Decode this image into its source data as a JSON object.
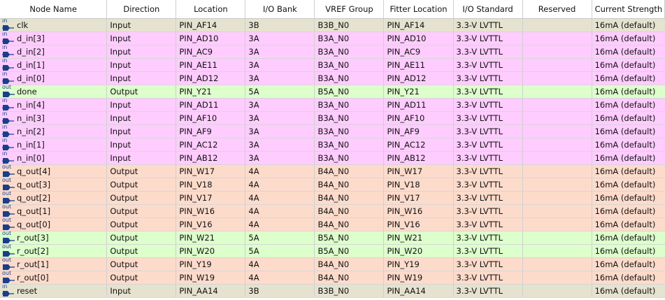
{
  "columns": [
    "Node Name",
    "Direction",
    "Location",
    "I/O Bank",
    "VREF Group",
    "Fitter Location",
    "I/O Standard",
    "Reserved",
    "Current Strength"
  ],
  "colors": {
    "clock": "#e5e3cf",
    "input_data": "#ffccff",
    "output_status": "#ddffcc",
    "output_data": "#fddbcb",
    "icon": "#1a3f8a"
  },
  "rows": [
    {
      "icon": "in",
      "name": "clk",
      "direction": "Input",
      "location": "PIN_AF14",
      "bank": "3B",
      "vref": "B3B_N0",
      "fitter": "PIN_AF14",
      "standard": "3.3-V LVTTL",
      "reserved": "",
      "current": "16mA (default)",
      "group": "clock"
    },
    {
      "icon": "in",
      "name": "d_in[3]",
      "direction": "Input",
      "location": "PIN_AD10",
      "bank": "3A",
      "vref": "B3A_N0",
      "fitter": "PIN_AD10",
      "standard": "3.3-V LVTTL",
      "reserved": "",
      "current": "16mA (default)",
      "group": "input_data"
    },
    {
      "icon": "in",
      "name": "d_in[2]",
      "direction": "Input",
      "location": "PIN_AC9",
      "bank": "3A",
      "vref": "B3A_N0",
      "fitter": "PIN_AC9",
      "standard": "3.3-V LVTTL",
      "reserved": "",
      "current": "16mA (default)",
      "group": "input_data"
    },
    {
      "icon": "in",
      "name": "d_in[1]",
      "direction": "Input",
      "location": "PIN_AE11",
      "bank": "3A",
      "vref": "B3A_N0",
      "fitter": "PIN_AE11",
      "standard": "3.3-V LVTTL",
      "reserved": "",
      "current": "16mA (default)",
      "group": "input_data"
    },
    {
      "icon": "in",
      "name": "d_in[0]",
      "direction": "Input",
      "location": "PIN_AD12",
      "bank": "3A",
      "vref": "B3A_N0",
      "fitter": "PIN_AD12",
      "standard": "3.3-V LVTTL",
      "reserved": "",
      "current": "16mA (default)",
      "group": "input_data"
    },
    {
      "icon": "out",
      "name": "done",
      "direction": "Output",
      "location": "PIN_Y21",
      "bank": "5A",
      "vref": "B5A_N0",
      "fitter": "PIN_Y21",
      "standard": "3.3-V LVTTL",
      "reserved": "",
      "current": "16mA (default)",
      "group": "output_status"
    },
    {
      "icon": "in",
      "name": "n_in[4]",
      "direction": "Input",
      "location": "PIN_AD11",
      "bank": "3A",
      "vref": "B3A_N0",
      "fitter": "PIN_AD11",
      "standard": "3.3-V LVTTL",
      "reserved": "",
      "current": "16mA (default)",
      "group": "input_data"
    },
    {
      "icon": "in",
      "name": "n_in[3]",
      "direction": "Input",
      "location": "PIN_AF10",
      "bank": "3A",
      "vref": "B3A_N0",
      "fitter": "PIN_AF10",
      "standard": "3.3-V LVTTL",
      "reserved": "",
      "current": "16mA (default)",
      "group": "input_data"
    },
    {
      "icon": "in",
      "name": "n_in[2]",
      "direction": "Input",
      "location": "PIN_AF9",
      "bank": "3A",
      "vref": "B3A_N0",
      "fitter": "PIN_AF9",
      "standard": "3.3-V LVTTL",
      "reserved": "",
      "current": "16mA (default)",
      "group": "input_data"
    },
    {
      "icon": "in",
      "name": "n_in[1]",
      "direction": "Input",
      "location": "PIN_AC12",
      "bank": "3A",
      "vref": "B3A_N0",
      "fitter": "PIN_AC12",
      "standard": "3.3-V LVTTL",
      "reserved": "",
      "current": "16mA (default)",
      "group": "input_data"
    },
    {
      "icon": "in",
      "name": "n_in[0]",
      "direction": "Input",
      "location": "PIN_AB12",
      "bank": "3A",
      "vref": "B3A_N0",
      "fitter": "PIN_AB12",
      "standard": "3.3-V LVTTL",
      "reserved": "",
      "current": "16mA (default)",
      "group": "input_data"
    },
    {
      "icon": "out",
      "name": "q_out[4]",
      "direction": "Output",
      "location": "PIN_W17",
      "bank": "4A",
      "vref": "B4A_N0",
      "fitter": "PIN_W17",
      "standard": "3.3-V LVTTL",
      "reserved": "",
      "current": "16mA (default)",
      "group": "output_data"
    },
    {
      "icon": "out",
      "name": "q_out[3]",
      "direction": "Output",
      "location": "PIN_V18",
      "bank": "4A",
      "vref": "B4A_N0",
      "fitter": "PIN_V18",
      "standard": "3.3-V LVTTL",
      "reserved": "",
      "current": "16mA (default)",
      "group": "output_data"
    },
    {
      "icon": "out",
      "name": "q_out[2]",
      "direction": "Output",
      "location": "PIN_V17",
      "bank": "4A",
      "vref": "B4A_N0",
      "fitter": "PIN_V17",
      "standard": "3.3-V LVTTL",
      "reserved": "",
      "current": "16mA (default)",
      "group": "output_data"
    },
    {
      "icon": "out",
      "name": "q_out[1]",
      "direction": "Output",
      "location": "PIN_W16",
      "bank": "4A",
      "vref": "B4A_N0",
      "fitter": "PIN_W16",
      "standard": "3.3-V LVTTL",
      "reserved": "",
      "current": "16mA (default)",
      "group": "output_data"
    },
    {
      "icon": "out",
      "name": "q_out[0]",
      "direction": "Output",
      "location": "PIN_V16",
      "bank": "4A",
      "vref": "B4A_N0",
      "fitter": "PIN_V16",
      "standard": "3.3-V LVTTL",
      "reserved": "",
      "current": "16mA (default)",
      "group": "output_data"
    },
    {
      "icon": "out",
      "name": "r_out[3]",
      "direction": "Output",
      "location": "PIN_W21",
      "bank": "5A",
      "vref": "B5A_N0",
      "fitter": "PIN_W21",
      "standard": "3.3-V LVTTL",
      "reserved": "",
      "current": "16mA (default)",
      "group": "output_status"
    },
    {
      "icon": "out",
      "name": "r_out[2]",
      "direction": "Output",
      "location": "PIN_W20",
      "bank": "5A",
      "vref": "B5A_N0",
      "fitter": "PIN_W20",
      "standard": "3.3-V LVTTL",
      "reserved": "",
      "current": "16mA (default)",
      "group": "output_status"
    },
    {
      "icon": "out",
      "name": "r_out[1]",
      "direction": "Output",
      "location": "PIN_Y19",
      "bank": "4A",
      "vref": "B4A_N0",
      "fitter": "PIN_Y19",
      "standard": "3.3-V LVTTL",
      "reserved": "",
      "current": "16mA (default)",
      "group": "output_data"
    },
    {
      "icon": "out",
      "name": "r_out[0]",
      "direction": "Output",
      "location": "PIN_W19",
      "bank": "4A",
      "vref": "B4A_N0",
      "fitter": "PIN_W19",
      "standard": "3.3-V LVTTL",
      "reserved": "",
      "current": "16mA (default)",
      "group": "output_data"
    },
    {
      "icon": "in",
      "name": "reset",
      "direction": "Input",
      "location": "PIN_AA14",
      "bank": "3B",
      "vref": "B3B_N0",
      "fitter": "PIN_AA14",
      "standard": "3.3-V LVTTL",
      "reserved": "",
      "current": "16mA (default)",
      "group": "clock"
    }
  ]
}
